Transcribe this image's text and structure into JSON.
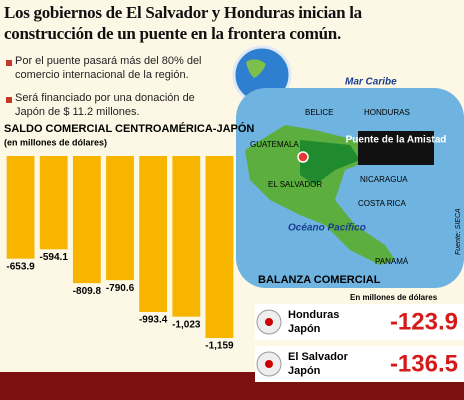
{
  "header": {
    "title": "Los gobiernos de El Salvador y Honduras inician la construcción de un puente en la frontera común."
  },
  "bullets": [
    "Por el puente pasará más del 80% del comercio internacional de la región.",
    "Será financiado por una donación de Japón de $ 11.2 millones."
  ],
  "chart_data": {
    "type": "bar",
    "title": "SALDO COMERCIAL CENTROAMÉRICA-JAPÓN",
    "subtitle": "(en millones de dólares)",
    "categories": [
      null,
      null,
      null,
      null,
      null,
      null,
      null
    ],
    "values": [
      -653.9,
      -594.1,
      -809.8,
      -790.6,
      -993.4,
      -1023,
      -1159
    ],
    "value_labels": [
      "-653.9",
      "-594.1",
      "-809.8",
      "-790.6",
      "-993.4",
      "-1,023",
      "-1,159"
    ],
    "color": "#f7b500"
  },
  "map": {
    "labels": [
      "Mar Caribe",
      "BELICE",
      "HONDURAS",
      "GUATEMALA",
      "Puente de la Amistad",
      "EL SALVADOR",
      "NICARAGUA",
      "COSTA RICA",
      "Océano Pacífico",
      "PANAMÁ"
    ],
    "source": "Fuente: SIECA"
  },
  "balanza": {
    "title": "BALANZA COMERCIAL",
    "unit": "En millones de dólares",
    "rows": [
      {
        "country": "Honduras",
        "partner": "Japón",
        "value": -123.9
      },
      {
        "country": "El Salvador",
        "partner": "Japón",
        "value": -136.5
      }
    ]
  }
}
